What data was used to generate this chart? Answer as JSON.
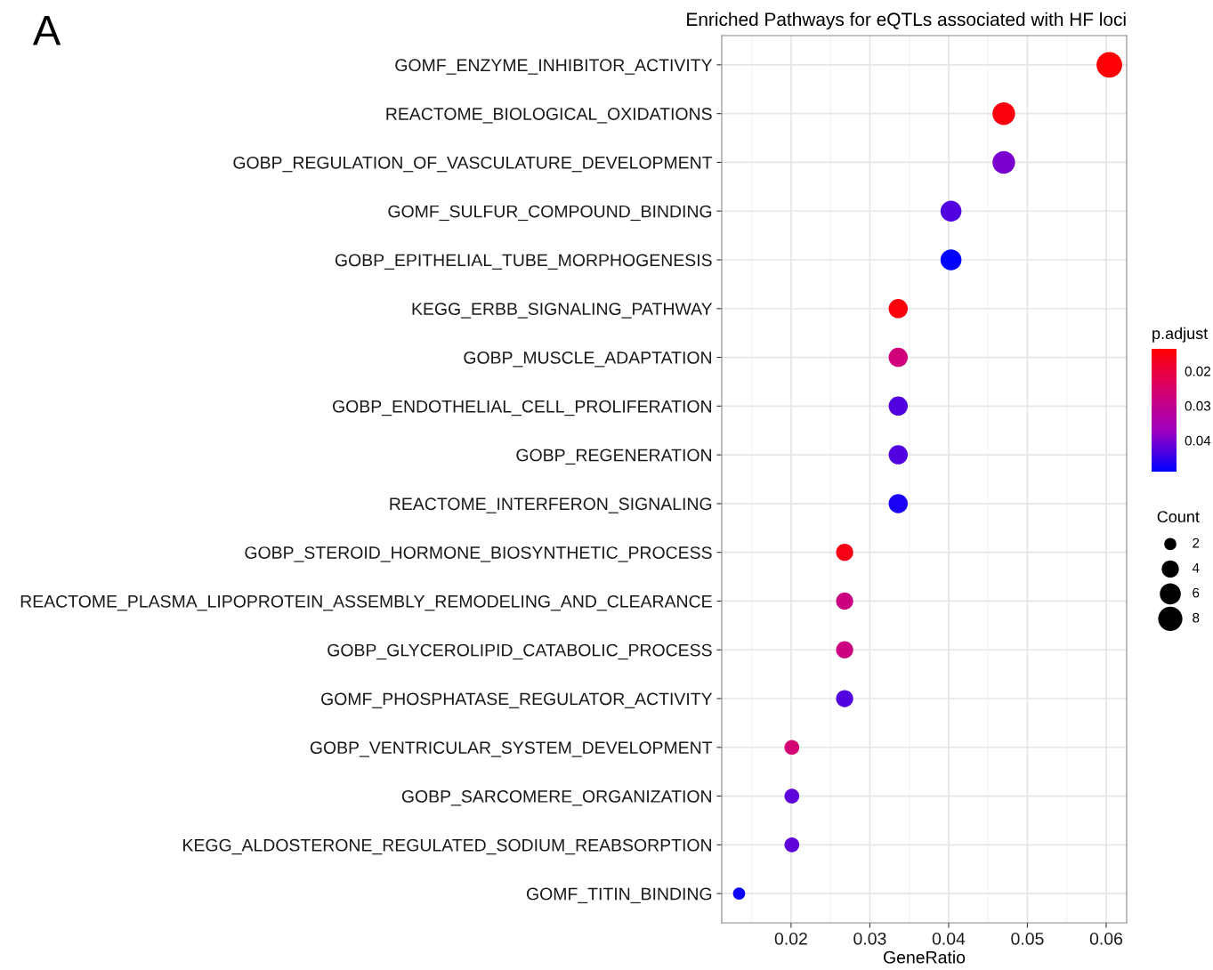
{
  "chart_data": {
    "type": "scatter",
    "title": "Enriched Pathways for eQTLs associated with HF loci",
    "xlabel": "GeneRatio",
    "clabel": "p.adjust",
    "legend_title": "Count",
    "annotations": [
      "A"
    ],
    "categories": [
      "GOMF_ENZYME_INHIBITOR_ACTIVITY",
      "REACTOME_BIOLOGICAL_OXIDATIONS",
      "GOBP_REGULATION_OF_VASCULATURE_DEVELOPMENT",
      "GOMF_SULFUR_COMPOUND_BINDING",
      "GOBP_EPITHELIAL_TUBE_MORPHOGENESIS",
      "KEGG_ERBB_SIGNALING_PATHWAY",
      "GOBP_MUSCLE_ADAPTATION",
      "GOBP_ENDOTHELIAL_CELL_PROLIFERATION",
      "GOBP_REGENERATION",
      "REACTOME_INTERFERON_SIGNALING",
      "GOBP_STEROID_HORMONE_BIOSYNTHETIC_PROCESS",
      "REACTOME_PLASMA_LIPOPROTEIN_ASSEMBLY_REMODELING_AND_CLEARANCE",
      "GOBP_GLYCEROLIPID_CATABOLIC_PROCESS",
      "GOMF_PHOSPHATASE_REGULATOR_ACTIVITY",
      "GOBP_VENTRICULAR_SYSTEM_DEVELOPMENT",
      "GOBP_SARCOMERE_ORGANIZATION",
      "KEGG_ALDOSTERONE_REGULATED_SODIUM_REABSORPTION",
      "GOMF_TITIN_BINDING"
    ],
    "values": [
      0.0604,
      0.047,
      0.047,
      0.0403,
      0.0403,
      0.0336,
      0.0336,
      0.0336,
      0.0336,
      0.0336,
      0.0268,
      0.0268,
      0.0268,
      0.0268,
      0.0201,
      0.0201,
      0.0201,
      0.0134
    ],
    "sizes": [
      9,
      7,
      7,
      6,
      6,
      5,
      5,
      5,
      5,
      5,
      4,
      4,
      4,
      4,
      3,
      3,
      3,
      2
    ],
    "size_legend": [
      2,
      4,
      6,
      8
    ],
    "cvalues": [
      0.014,
      0.015,
      0.04,
      0.043,
      0.049,
      0.015,
      0.027,
      0.043,
      0.043,
      0.047,
      0.016,
      0.028,
      0.028,
      0.043,
      0.026,
      0.042,
      0.042,
      0.048
    ],
    "clim": [
      0.0136,
      0.049
    ],
    "cticks": [
      0.02,
      0.03,
      0.04
    ],
    "orientation": "horizontal",
    "xlim": [
      0.0112,
      0.0626
    ],
    "xticks": [
      0.02,
      0.03,
      0.04,
      0.05,
      0.06
    ],
    "grid": true
  }
}
